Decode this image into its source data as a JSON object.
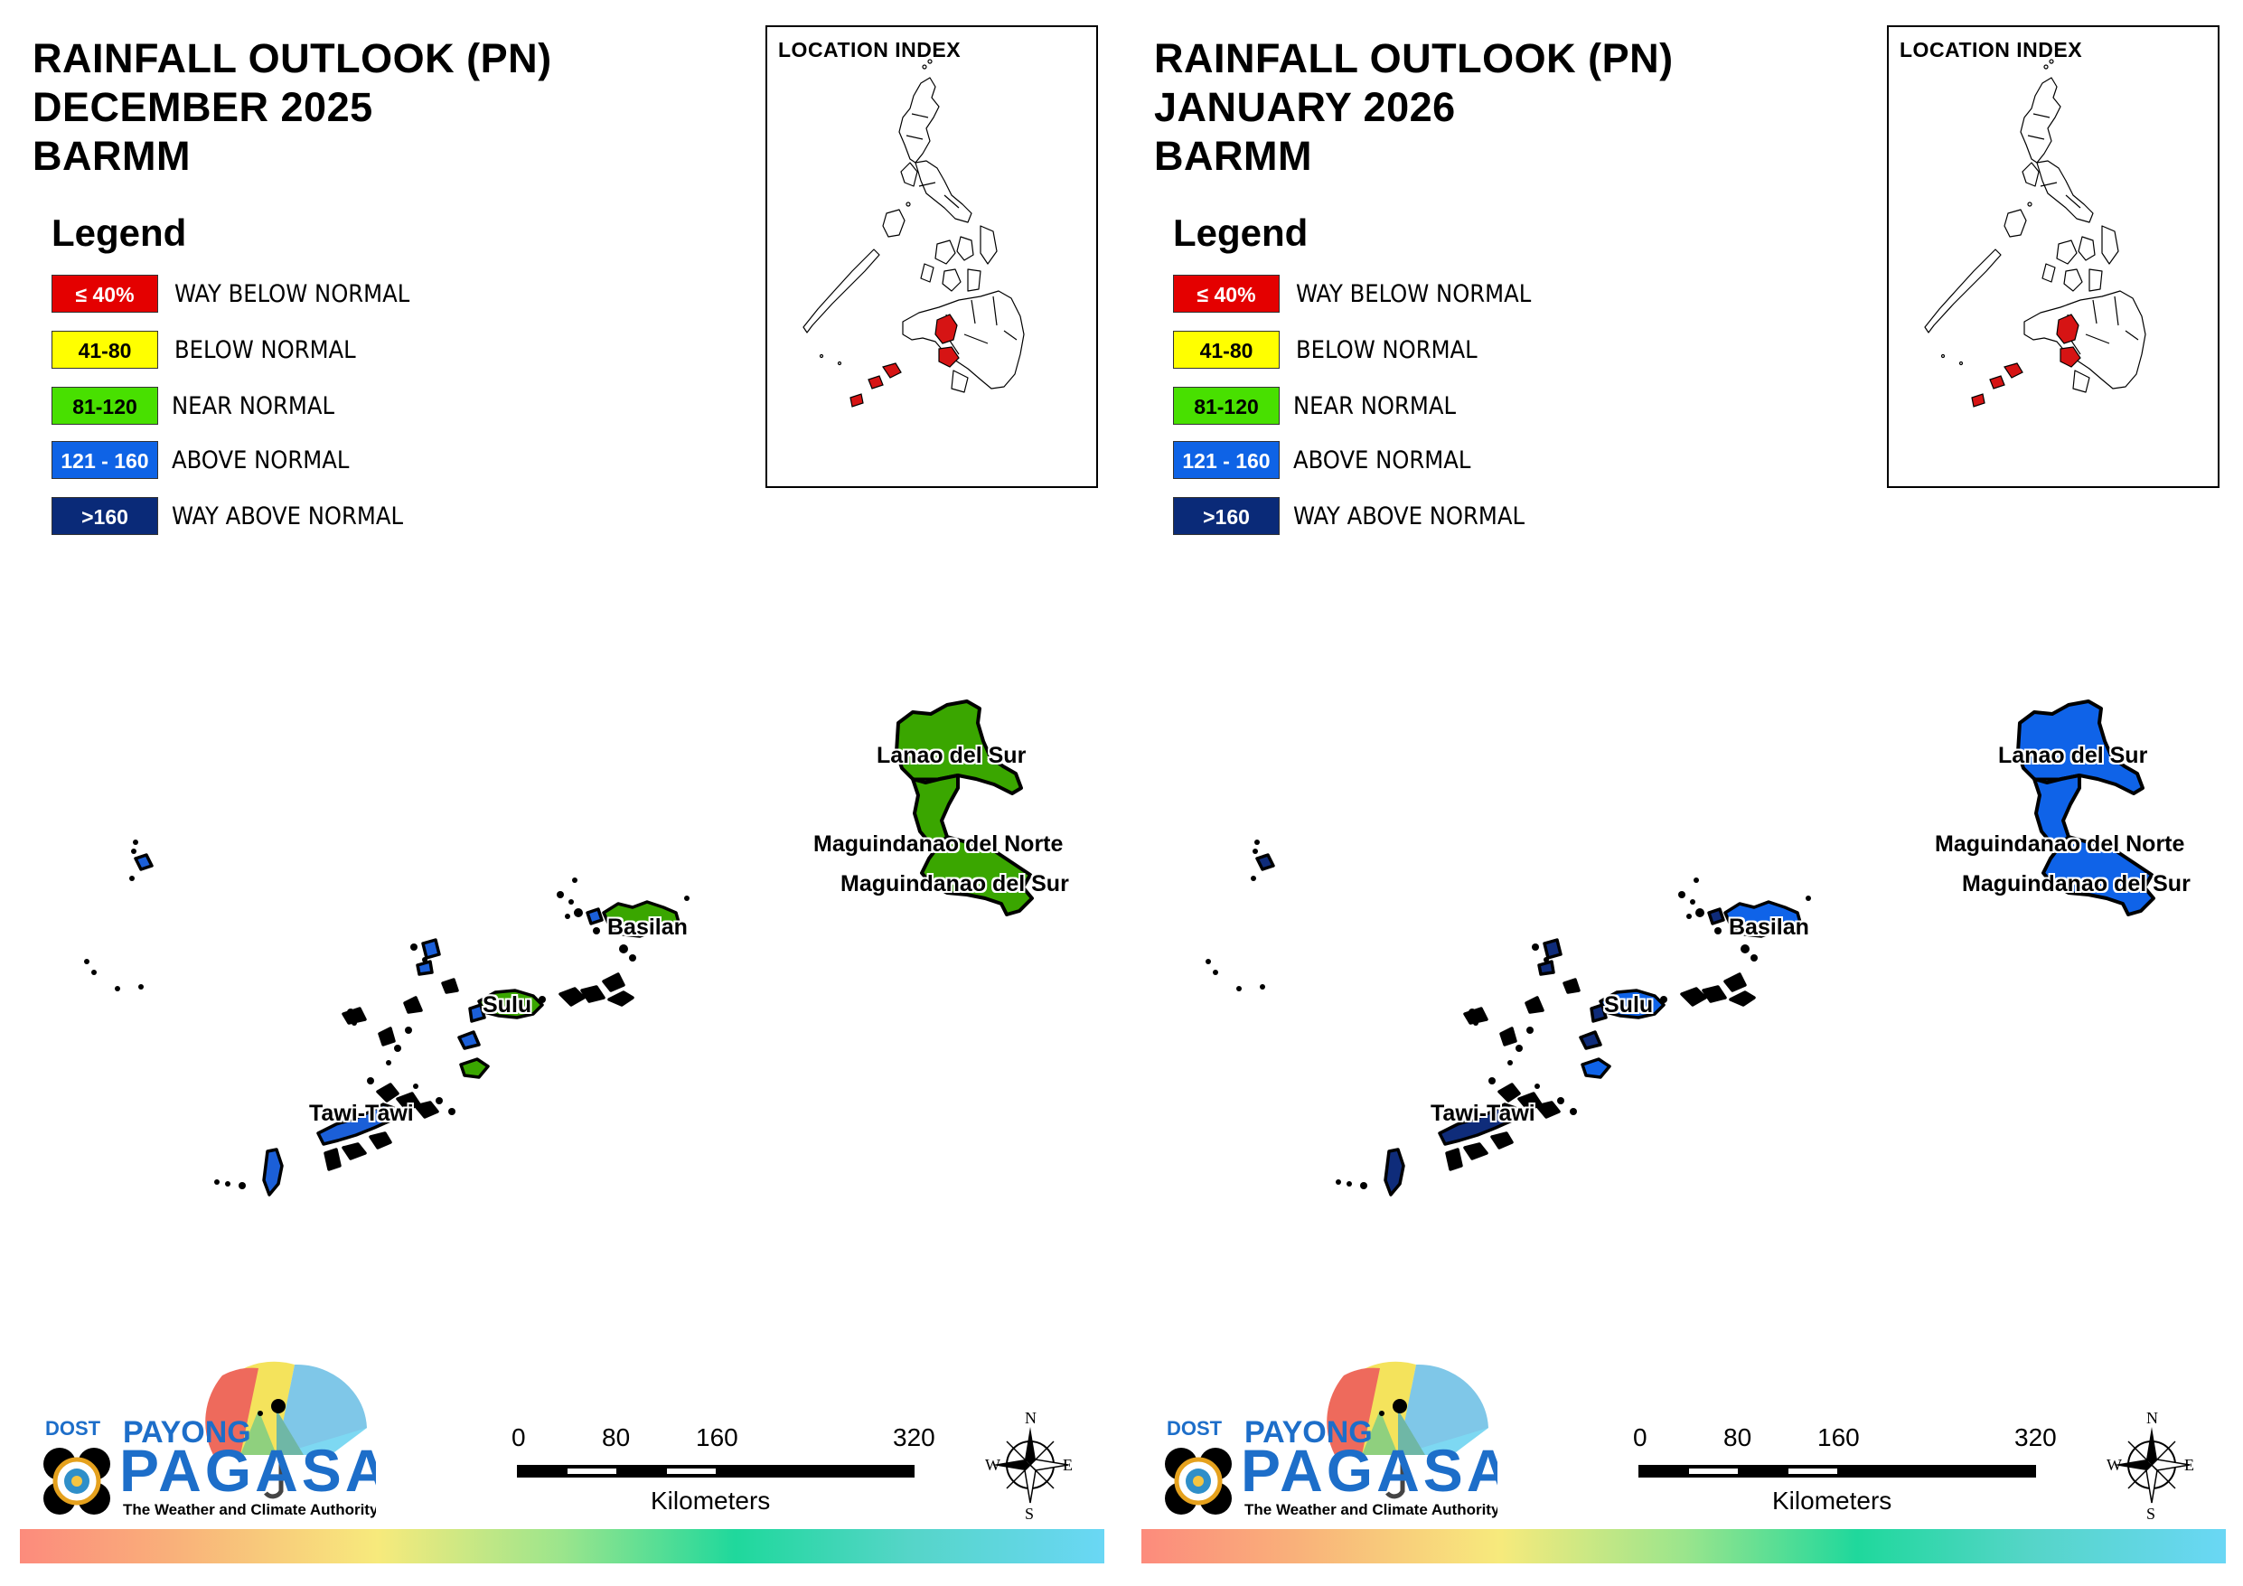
{
  "panels": [
    {
      "title_line1": "RAINFALL OUTLOOK (PN)",
      "title_line2": "DECEMBER 2025",
      "title_line3": "BARMM",
      "fill_color": "#3aa600",
      "island_accent": "#1b5fd8"
    },
    {
      "title_line1": "RAINFALL OUTLOOK (PN)",
      "title_line2": "JANUARY 2026",
      "title_line3": "BARMM",
      "fill_color": "#0f63e8",
      "island_accent": "#0f2c7a"
    }
  ],
  "legend": {
    "heading": "Legend",
    "items": [
      {
        "range": "≤ 40%",
        "label": "WAY BELOW NORMAL",
        "color": "#e40000",
        "text_color": "#ffffff"
      },
      {
        "range": "41-80",
        "label": "BELOW NORMAL",
        "color": "#ffff00",
        "text_color": "#000000"
      },
      {
        "range": "81-120",
        "label": "NEAR NORMAL",
        "color": "#48e000",
        "text_color": "#000000"
      },
      {
        "range": "121 - 160",
        "label": "ABOVE NORMAL",
        "color": "#0e63e6",
        "text_color": "#ffffff"
      },
      {
        "range": ">160",
        "label": "WAY ABOVE NORMAL",
        "color": "#0a2a78",
        "text_color": "#ffffff"
      }
    ]
  },
  "location_index": {
    "title": "LOCATION INDEX",
    "highlight_color": "#d61414"
  },
  "map": {
    "labels": {
      "lanao_del_sur": "Lanao del Sur",
      "maguindanao_del_norte": "Maguindanao del Norte",
      "maguindanao_del_sur": "Maguindanao del Sur",
      "basilan": "Basilan",
      "sulu": "Sulu",
      "tawi_tawi": "Tawi-Tawi"
    }
  },
  "scale": {
    "ticks": [
      "0",
      "80",
      "160",
      "320"
    ],
    "unit": "Kilometers"
  },
  "compass": {
    "n": "N",
    "e": "E",
    "s": "S",
    "w": "W"
  },
  "logo": {
    "dost": "DOST",
    "payong": "PAYONG",
    "pagasa": "PAGASA",
    "tagline": "The Weather and Climate Authority"
  }
}
